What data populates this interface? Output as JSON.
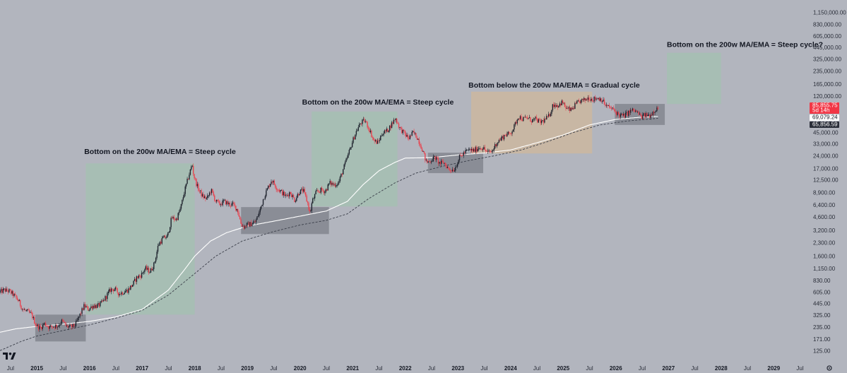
{
  "chart_data": {
    "type": "candlestick",
    "title": "",
    "xlabel": "",
    "ylabel": "",
    "y_scale": "log",
    "ylim": [
      100,
      1600000
    ],
    "xlim": [
      2014.3,
      2029.6
    ],
    "grid": false,
    "legend": "none",
    "colors": {
      "up": "#1e222d",
      "down": "#e8434f",
      "ma200": "#ffffff",
      "ema200": "#3a3e49"
    },
    "y_ticks": [
      {
        "value": 125,
        "label": "125.00"
      },
      {
        "value": 171,
        "label": "171.00"
      },
      {
        "value": 235,
        "label": "235.00"
      },
      {
        "value": 325,
        "label": "325.00"
      },
      {
        "value": 445,
        "label": "445.00"
      },
      {
        "value": 605,
        "label": "605.00"
      },
      {
        "value": 830,
        "label": "830.00"
      },
      {
        "value": 1150,
        "label": "1,150.00"
      },
      {
        "value": 1600,
        "label": "1,600.00"
      },
      {
        "value": 2300,
        "label": "2,300.00"
      },
      {
        "value": 3200,
        "label": "3,200.00"
      },
      {
        "value": 4600,
        "label": "4,600.00"
      },
      {
        "value": 6400,
        "label": "6,400.00"
      },
      {
        "value": 8900,
        "label": "8,900.00"
      },
      {
        "value": 12500,
        "label": "12,500.00"
      },
      {
        "value": 17000,
        "label": "17,000.00"
      },
      {
        "value": 24000,
        "label": "24,000.00"
      },
      {
        "value": 33000,
        "label": "33,000.00"
      },
      {
        "value": 45000,
        "label": "45,000.00"
      },
      {
        "value": 120000,
        "label": "120,000.00"
      },
      {
        "value": 165000,
        "label": "165,000.00"
      },
      {
        "value": 235000,
        "label": "235,000.00"
      },
      {
        "value": 325000,
        "label": "325,000.00"
      },
      {
        "value": 445000,
        "label": "445,000.00"
      },
      {
        "value": 605000,
        "label": "605,000.00"
      },
      {
        "value": 830000,
        "label": "830,000.00"
      },
      {
        "value": 1150000,
        "label": "1,150,000.00"
      }
    ],
    "x_ticks": [
      {
        "t": 2014.5,
        "label": "Jul",
        "kind": "month"
      },
      {
        "t": 2015.0,
        "label": "2015",
        "kind": "year"
      },
      {
        "t": 2015.5,
        "label": "Jul",
        "kind": "month"
      },
      {
        "t": 2016.0,
        "label": "2016",
        "kind": "year"
      },
      {
        "t": 2016.5,
        "label": "Jul",
        "kind": "month"
      },
      {
        "t": 2017.0,
        "label": "2017",
        "kind": "year"
      },
      {
        "t": 2017.5,
        "label": "Jul",
        "kind": "month"
      },
      {
        "t": 2018.0,
        "label": "2018",
        "kind": "year"
      },
      {
        "t": 2018.5,
        "label": "Jul",
        "kind": "month"
      },
      {
        "t": 2019.0,
        "label": "2019",
        "kind": "year"
      },
      {
        "t": 2019.5,
        "label": "Jul",
        "kind": "month"
      },
      {
        "t": 2020.0,
        "label": "2020",
        "kind": "year"
      },
      {
        "t": 2020.5,
        "label": "Jul",
        "kind": "month"
      },
      {
        "t": 2021.0,
        "label": "2021",
        "kind": "year"
      },
      {
        "t": 2021.5,
        "label": "Jul",
        "kind": "month"
      },
      {
        "t": 2022.0,
        "label": "2022",
        "kind": "year"
      },
      {
        "t": 2022.5,
        "label": "Jul",
        "kind": "month"
      },
      {
        "t": 2023.0,
        "label": "2023",
        "kind": "year"
      },
      {
        "t": 2023.5,
        "label": "Jul",
        "kind": "month"
      },
      {
        "t": 2024.0,
        "label": "2024",
        "kind": "year"
      },
      {
        "t": 2024.5,
        "label": "Jul",
        "kind": "month"
      },
      {
        "t": 2025.0,
        "label": "2025",
        "kind": "year"
      },
      {
        "t": 2025.5,
        "label": "Jul",
        "kind": "month"
      },
      {
        "t": 2026.0,
        "label": "2026",
        "kind": "year"
      },
      {
        "t": 2026.5,
        "label": "Jul",
        "kind": "month"
      },
      {
        "t": 2027.0,
        "label": "2027",
        "kind": "year"
      },
      {
        "t": 2027.5,
        "label": "Jul",
        "kind": "month"
      },
      {
        "t": 2028.0,
        "label": "2028",
        "kind": "year"
      },
      {
        "t": 2028.5,
        "label": "Jul",
        "kind": "month"
      },
      {
        "t": 2029.0,
        "label": "2029",
        "kind": "year"
      },
      {
        "t": 2029.5,
        "label": "Jul",
        "kind": "month"
      }
    ],
    "price_path": [
      [
        2014.3,
        600
      ],
      [
        2014.4,
        640
      ],
      [
        2014.5,
        620
      ],
      [
        2014.58,
        560
      ],
      [
        2014.67,
        480
      ],
      [
        2014.75,
        380
      ],
      [
        2014.83,
        360
      ],
      [
        2014.92,
        330
      ],
      [
        2015.0,
        250
      ],
      [
        2015.08,
        230
      ],
      [
        2015.17,
        260
      ],
      [
        2015.25,
        235
      ],
      [
        2015.33,
        240
      ],
      [
        2015.42,
        245
      ],
      [
        2015.5,
        280
      ],
      [
        2015.58,
        240
      ],
      [
        2015.67,
        235
      ],
      [
        2015.75,
        250
      ],
      [
        2015.83,
        320
      ],
      [
        2015.92,
        420
      ],
      [
        2016.0,
        380
      ],
      [
        2016.08,
        420
      ],
      [
        2016.17,
        415
      ],
      [
        2016.25,
        450
      ],
      [
        2016.33,
        530
      ],
      [
        2016.42,
        650
      ],
      [
        2016.5,
        660
      ],
      [
        2016.58,
        580
      ],
      [
        2016.67,
        610
      ],
      [
        2016.75,
        640
      ],
      [
        2016.83,
        730
      ],
      [
        2016.92,
        900
      ],
      [
        2017.0,
        960
      ],
      [
        2017.08,
        1150
      ],
      [
        2017.17,
        1050
      ],
      [
        2017.25,
        1300
      ],
      [
        2017.33,
        2200
      ],
      [
        2017.42,
        2600
      ],
      [
        2017.5,
        2700
      ],
      [
        2017.58,
        4500
      ],
      [
        2017.67,
        4300
      ],
      [
        2017.75,
        5800
      ],
      [
        2017.83,
        9500
      ],
      [
        2017.92,
        15000
      ],
      [
        2017.97,
        19000
      ],
      [
        2018.0,
        14000
      ],
      [
        2018.08,
        10000
      ],
      [
        2018.17,
        8000
      ],
      [
        2018.25,
        7500
      ],
      [
        2018.33,
        9500
      ],
      [
        2018.42,
        7000
      ],
      [
        2018.5,
        6500
      ],
      [
        2018.58,
        7000
      ],
      [
        2018.67,
        6500
      ],
      [
        2018.75,
        6400
      ],
      [
        2018.83,
        5600
      ],
      [
        2018.9,
        3800
      ],
      [
        2018.96,
        3500
      ],
      [
        2019.0,
        3700
      ],
      [
        2019.08,
        3800
      ],
      [
        2019.17,
        4000
      ],
      [
        2019.25,
        5300
      ],
      [
        2019.33,
        7800
      ],
      [
        2019.42,
        10500
      ],
      [
        2019.48,
        12500
      ],
      [
        2019.58,
        10000
      ],
      [
        2019.67,
        9000
      ],
      [
        2019.75,
        8000
      ],
      [
        2019.83,
        9000
      ],
      [
        2019.92,
        7200
      ],
      [
        2020.0,
        9000
      ],
      [
        2020.08,
        9500
      ],
      [
        2020.17,
        6500
      ],
      [
        2020.21,
        5000
      ],
      [
        2020.25,
        7000
      ],
      [
        2020.33,
        9000
      ],
      [
        2020.42,
        9500
      ],
      [
        2020.5,
        9200
      ],
      [
        2020.58,
        11500
      ],
      [
        2020.67,
        11000
      ],
      [
        2020.75,
        11500
      ],
      [
        2020.83,
        16000
      ],
      [
        2020.92,
        23000
      ],
      [
        2021.0,
        33000
      ],
      [
        2021.08,
        45000
      ],
      [
        2021.17,
        58000
      ],
      [
        2021.25,
        62000
      ],
      [
        2021.33,
        50000
      ],
      [
        2021.42,
        36000
      ],
      [
        2021.5,
        34000
      ],
      [
        2021.58,
        44000
      ],
      [
        2021.67,
        47000
      ],
      [
        2021.75,
        55000
      ],
      [
        2021.83,
        66000
      ],
      [
        2021.92,
        50000
      ],
      [
        2022.0,
        44000
      ],
      [
        2022.08,
        38000
      ],
      [
        2022.17,
        45000
      ],
      [
        2022.25,
        39000
      ],
      [
        2022.33,
        30000
      ],
      [
        2022.42,
        20000
      ],
      [
        2022.5,
        21000
      ],
      [
        2022.58,
        23000
      ],
      [
        2022.67,
        19500
      ],
      [
        2022.75,
        20000
      ],
      [
        2022.85,
        16500
      ],
      [
        2022.95,
        16600
      ],
      [
        2023.05,
        23000
      ],
      [
        2023.17,
        27000
      ],
      [
        2023.25,
        28000
      ],
      [
        2023.33,
        27500
      ],
      [
        2023.42,
        30000
      ],
      [
        2023.5,
        29500
      ],
      [
        2023.58,
        26000
      ],
      [
        2023.67,
        27000
      ],
      [
        2023.75,
        34000
      ],
      [
        2023.83,
        37500
      ],
      [
        2023.92,
        42500
      ],
      [
        2024.0,
        43000
      ],
      [
        2024.08,
        51000
      ],
      [
        2024.17,
        70000
      ],
      [
        2024.25,
        64000
      ],
      [
        2024.33,
        67000
      ],
      [
        2024.42,
        62000
      ],
      [
        2024.5,
        64000
      ],
      [
        2024.58,
        59000
      ],
      [
        2024.67,
        63000
      ],
      [
        2024.75,
        70000
      ],
      [
        2024.83,
        96000
      ],
      [
        2024.92,
        93000
      ],
      [
        2025.0,
        102000
      ],
      [
        2025.08,
        85000
      ],
      [
        2025.17,
        82000
      ],
      [
        2025.25,
        94000
      ],
      [
        2025.33,
        104000
      ],
      [
        2025.42,
        107000
      ],
      [
        2025.5,
        115000
      ],
      [
        2025.58,
        110000
      ],
      [
        2025.67,
        114000
      ],
      [
        2025.75,
        110000
      ],
      [
        2025.83,
        92000
      ],
      [
        2025.92,
        87000
      ],
      [
        2026.0,
        80000
      ],
      [
        2026.08,
        72000
      ],
      [
        2026.17,
        70000
      ],
      [
        2026.25,
        76000
      ],
      [
        2026.33,
        82000
      ],
      [
        2026.42,
        78000
      ],
      [
        2026.5,
        68000
      ],
      [
        2026.58,
        72000
      ],
      [
        2026.67,
        71000
      ],
      [
        2026.75,
        82000
      ],
      [
        2026.8,
        85855
      ]
    ],
    "ma200_path": [
      [
        2014.3,
        205
      ],
      [
        2014.6,
        225
      ],
      [
        2015.0,
        240
      ],
      [
        2015.5,
        255
      ],
      [
        2016.0,
        275
      ],
      [
        2016.5,
        310
      ],
      [
        2017.0,
        380
      ],
      [
        2017.5,
        640
      ],
      [
        2017.8,
        1100
      ],
      [
        2018.0,
        1600
      ],
      [
        2018.3,
        2400
      ],
      [
        2018.6,
        3000
      ],
      [
        2019.0,
        3600
      ],
      [
        2019.5,
        4100
      ],
      [
        2020.0,
        4700
      ],
      [
        2020.5,
        5400
      ],
      [
        2020.9,
        7000
      ],
      [
        2021.2,
        11000
      ],
      [
        2021.5,
        16000
      ],
      [
        2021.8,
        20000
      ],
      [
        2022.0,
        22500
      ],
      [
        2022.5,
        22800
      ],
      [
        2023.0,
        24500
      ],
      [
        2023.5,
        25800
      ],
      [
        2024.0,
        28000
      ],
      [
        2024.5,
        34000
      ],
      [
        2025.0,
        42000
      ],
      [
        2025.5,
        55000
      ],
      [
        2026.0,
        64000
      ],
      [
        2026.5,
        68000
      ],
      [
        2026.8,
        69079
      ]
    ],
    "ema200_path": [
      [
        2014.3,
        125
      ],
      [
        2014.7,
        160
      ],
      [
        2015.0,
        185
      ],
      [
        2015.5,
        215
      ],
      [
        2016.0,
        250
      ],
      [
        2016.5,
        300
      ],
      [
        2017.0,
        370
      ],
      [
        2017.5,
        560
      ],
      [
        2018.0,
        1000
      ],
      [
        2018.4,
        1600
      ],
      [
        2018.9,
        2400
      ],
      [
        2019.5,
        3100
      ],
      [
        2020.0,
        3700
      ],
      [
        2020.5,
        4200
      ],
      [
        2020.9,
        5000
      ],
      [
        2021.3,
        7500
      ],
      [
        2021.8,
        11500
      ],
      [
        2022.2,
        15000
      ],
      [
        2022.7,
        18000
      ],
      [
        2023.2,
        21000
      ],
      [
        2023.7,
        24000
      ],
      [
        2024.2,
        28000
      ],
      [
        2024.7,
        35000
      ],
      [
        2025.2,
        45000
      ],
      [
        2025.7,
        55000
      ],
      [
        2026.2,
        61000
      ],
      [
        2026.8,
        65856
      ]
    ],
    "zones": [
      {
        "kind": "bottom",
        "t0": 2014.97,
        "t1": 2015.93,
        "y0": 160,
        "y1": 330
      },
      {
        "kind": "cycle",
        "t0": 2015.93,
        "t1": 2018.0,
        "y0": 330,
        "y1": 19500
      },
      {
        "kind": "bottom",
        "t0": 2018.88,
        "t1": 2020.55,
        "y0": 2900,
        "y1": 6000
      },
      {
        "kind": "cycle",
        "t0": 2020.22,
        "t1": 2021.85,
        "y0": 6100,
        "y1": 79000
      },
      {
        "kind": "bottom",
        "t0": 2022.43,
        "t1": 2023.48,
        "y0": 15000,
        "y1": 26000
      },
      {
        "kind": "gradual",
        "t0": 2023.25,
        "t1": 2025.55,
        "y0": 25500,
        "y1": 135000
      },
      {
        "kind": "bottom",
        "t0": 2025.98,
        "t1": 2026.93,
        "y0": 55000,
        "y1": 97000
      },
      {
        "kind": "cycle",
        "t0": 2026.97,
        "t1": 2028.0,
        "y0": 97000,
        "y1": 385000
      }
    ],
    "annotations": [
      {
        "text": "Bottom on the 200w MA/EMA = Steep cycle",
        "t": 2015.9,
        "y": 25000
      },
      {
        "text": "Bottom on the 200w MA/EMA = Steep cycle",
        "t": 2020.04,
        "y": 95000
      },
      {
        "text": "Bottom below the 200w MA/EMA = Gradual cycle",
        "t": 2023.2,
        "y": 150000
      },
      {
        "text": "Bottom on the 200w MA/EMA = Steep cycle?",
        "t": 2026.97,
        "y": 450000
      }
    ],
    "price_badges": {
      "last_price": "85,855.75",
      "countdown": "5d 14h",
      "ma200": "69,079.24",
      "ema200": "65,856.59"
    }
  }
}
